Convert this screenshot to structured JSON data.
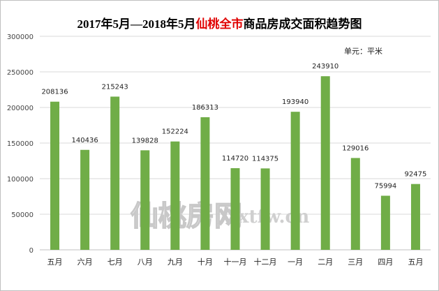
{
  "title": {
    "prefix": "2017年5月—2018年5月",
    "highlight": "仙桃全市",
    "suffix": "商品房成交面积趋势图"
  },
  "unit_label": "单元：平米",
  "watermark": {
    "cn": "仙桃房网",
    "url": "xtfw.cn"
  },
  "colors": {
    "bar": "#70ad47",
    "grid": "#d9d9d9",
    "title_highlight": "#e00000"
  },
  "chart_data": {
    "type": "bar",
    "title": "2017年5月—2018年5月仙桃全市商品房成交面积趋势图",
    "xlabel": "",
    "ylabel": "",
    "unit": "单元：平米",
    "categories": [
      "五月",
      "六月",
      "七月",
      "八月",
      "九月",
      "十月",
      "十一月",
      "十二月",
      "一月",
      "二月",
      "三月",
      "四月",
      "五月"
    ],
    "values": [
      208136,
      140436,
      215243,
      139828,
      152224,
      186313,
      114720,
      114375,
      193940,
      243910,
      129016,
      75994,
      92475
    ],
    "ylim": [
      0,
      300000
    ],
    "yticks": [
      0,
      50000,
      100000,
      150000,
      200000,
      250000,
      300000
    ],
    "grid": true,
    "legend": "none"
  }
}
